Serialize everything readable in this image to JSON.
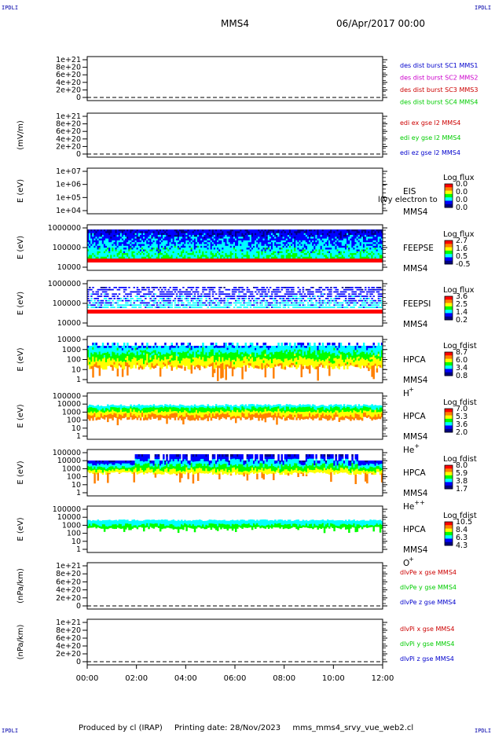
{
  "header": {
    "corner_label": "IPDLI",
    "mission": "MMS4",
    "datetime": "06/Apr/2017 00:00"
  },
  "footer": {
    "produced_by": "Produced by cl (IRAP)",
    "printing_date": "Printing date: 28/Nov/2023",
    "script": "mms_mms4_srvy_vue_web2.cl"
  },
  "colors": {
    "red": "#cc0000",
    "green": "#00cc00",
    "blue": "#0000cc",
    "magenta": "#cc00cc",
    "spectrogram_scale": [
      "#000080",
      "#0000ff",
      "#00ffff",
      "#00ff00",
      "#ffff00",
      "#ff8000",
      "#ff0000"
    ]
  },
  "chart_data": [
    {
      "type": "line",
      "ylabel": "",
      "yticks": [
        "0",
        "2e+20",
        "4e+20",
        "6e+20",
        "8e+20",
        "1e+21"
      ],
      "ylim": [
        0,
        1e+21
      ],
      "zero_line": "dashed",
      "legend": [
        {
          "text": "des dist burst SC1 MMS1",
          "color": "blue"
        },
        {
          "text": "des dist burst SC2 MMS2",
          "color": "magenta"
        },
        {
          "text": "des dist burst SC3 MMS3",
          "color": "red"
        },
        {
          "text": "des dist burst SC4 MMS4",
          "color": "green"
        }
      ]
    },
    {
      "type": "line",
      "ylabel": "(mV/m)",
      "yticks": [
        "0",
        "2e+20",
        "4e+20",
        "6e+20",
        "8e+20",
        "1e+21"
      ],
      "ylim": [
        0,
        1e+21
      ],
      "zero_line": "dashed",
      "legend": [
        {
          "text": "edi ex gse l2 MMS4",
          "color": "red"
        },
        {
          "text": "edi ey gse l2 MMS4",
          "color": "green"
        },
        {
          "text": "edi ez gse l2 MMS4",
          "color": "blue"
        }
      ]
    },
    {
      "type": "heatmap",
      "ylabel": "E (eV)",
      "yticks": [
        "1e+04",
        "1e+05",
        "1e+06",
        "1e+07"
      ],
      "scale": "log",
      "instrument": "EIS",
      "spacecraft": "MMS4",
      "overlay_text": "l(vy electron to",
      "colorbar_title": "Log flux",
      "colorbar_ticks": [
        "0.0",
        "0.0",
        "0.0",
        "0.0"
      ],
      "pattern": "empty"
    },
    {
      "type": "heatmap",
      "ylabel": "E (eV)",
      "yticks": [
        "10000",
        "100000",
        "1000000"
      ],
      "scale": "log",
      "instrument": "FEEPSE",
      "spacecraft": "MMS4",
      "colorbar_title": "Log flux",
      "colorbar_ticks": [
        "2.7",
        "1.6",
        "0.5",
        "-0.5"
      ],
      "pattern": "feepse"
    },
    {
      "type": "heatmap",
      "ylabel": "E (eV)",
      "yticks": [
        "10000",
        "100000",
        "1000000"
      ],
      "scale": "log",
      "instrument": "FEEPSI",
      "spacecraft": "MMS4",
      "colorbar_title": "Log flux",
      "colorbar_ticks": [
        "3.6",
        "2.5",
        "1.4",
        "0.2"
      ],
      "pattern": "feepsi"
    },
    {
      "type": "heatmap",
      "ylabel": "E (eV)",
      "yticks": [
        "1",
        "10",
        "100",
        "1000",
        "10000"
      ],
      "scale": "log",
      "instrument": "HPCA",
      "spacecraft": "MMS4",
      "species": "H",
      "species_sup": "+",
      "colorbar_title": "Log fdist",
      "colorbar_ticks": [
        "8.7",
        "6.0",
        "3.4",
        "0.8"
      ],
      "pattern": "hplus"
    },
    {
      "type": "heatmap",
      "ylabel": "E (eV)",
      "yticks": [
        "1",
        "10",
        "100",
        "1000",
        "10000",
        "100000"
      ],
      "scale": "log",
      "instrument": "HPCA",
      "spacecraft": "MMS4",
      "species": "He",
      "species_sup": "+",
      "colorbar_title": "Log fdist",
      "colorbar_ticks": [
        "7.0",
        "5.3",
        "3.6",
        "2.0"
      ],
      "pattern": "heplus"
    },
    {
      "type": "heatmap",
      "ylabel": "E (eV)",
      "yticks": [
        "1",
        "10",
        "100",
        "1000",
        "10000",
        "100000"
      ],
      "scale": "log",
      "instrument": "HPCA",
      "spacecraft": "MMS4",
      "species": "He",
      "species_sup": "++",
      "colorbar_title": "Log fdist",
      "colorbar_ticks": [
        "8.0",
        "5.9",
        "3.8",
        "1.7"
      ],
      "pattern": "heplusplus"
    },
    {
      "type": "heatmap",
      "ylabel": "E (eV)",
      "yticks": [
        "1",
        "10",
        "100",
        "1000",
        "10000",
        "100000"
      ],
      "scale": "log",
      "instrument": "HPCA",
      "spacecraft": "MMS4",
      "species": "O",
      "species_sup": "+",
      "colorbar_title": "Log fdist",
      "colorbar_ticks": [
        "10.5",
        "8.4",
        "6.3",
        "4.3"
      ],
      "pattern": "oplus"
    },
    {
      "type": "line",
      "ylabel": "(nPa/km)",
      "yticks": [
        "0",
        "2e+20",
        "4e+20",
        "6e+20",
        "8e+20",
        "1e+21"
      ],
      "ylim": [
        0,
        1e+21
      ],
      "zero_line": "dashed",
      "legend": [
        {
          "text": "dlvPe x gse MMS4",
          "color": "red"
        },
        {
          "text": "dlvPe y gse MMS4",
          "color": "green"
        },
        {
          "text": "dlvPe z gse MMS4",
          "color": "blue"
        }
      ]
    },
    {
      "type": "line",
      "ylabel": "(nPa/km)",
      "yticks": [
        "0",
        "2e+20",
        "4e+20",
        "6e+20",
        "8e+20",
        "1e+21"
      ],
      "ylim": [
        0,
        1e+21
      ],
      "zero_line": "dashed",
      "legend": [
        {
          "text": "dlvPi x gse MMS4",
          "color": "red"
        },
        {
          "text": "dlvPi y gse MMS4",
          "color": "green"
        },
        {
          "text": "dlvPi z gse MMS4",
          "color": "blue"
        }
      ]
    }
  ],
  "time_axis": {
    "labels": [
      "00:00",
      "02:00",
      "04:00",
      "06:00",
      "08:00",
      "10:00",
      "12:00"
    ],
    "range_hours": [
      0,
      12
    ]
  }
}
